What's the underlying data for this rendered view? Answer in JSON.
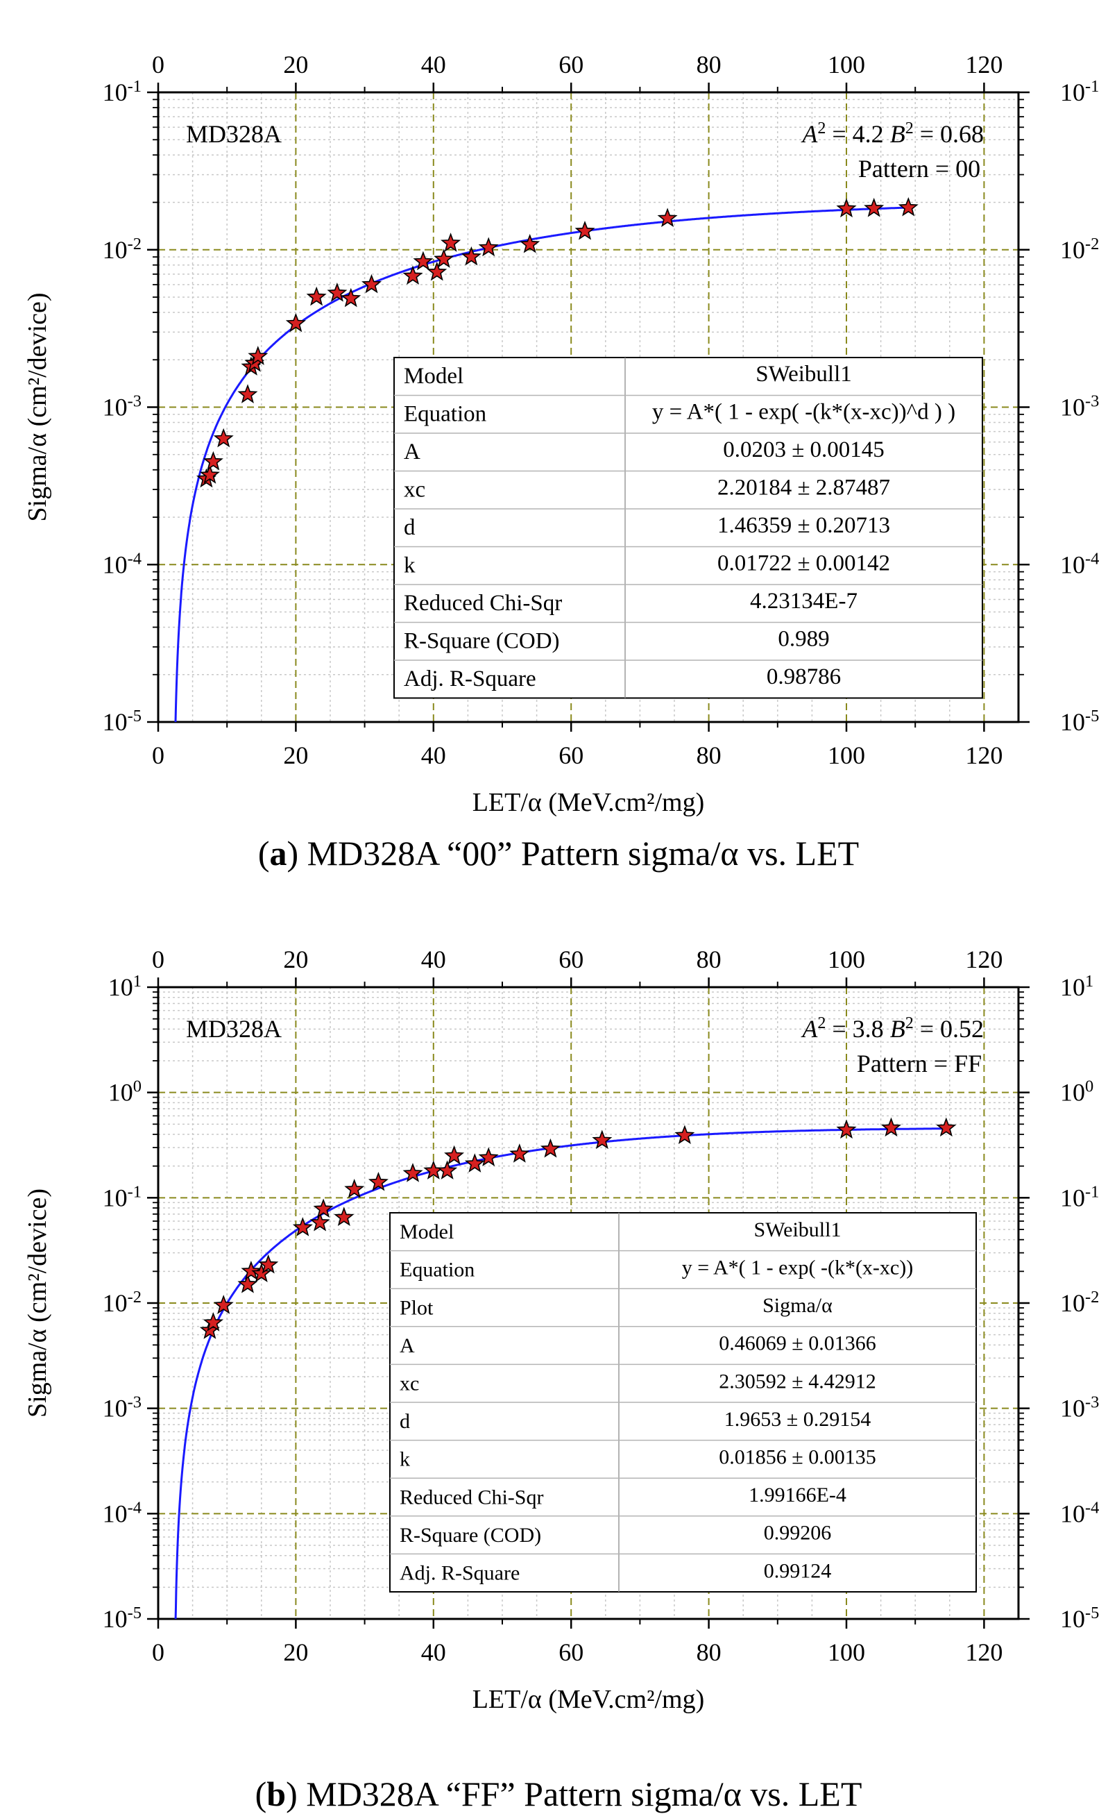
{
  "chart_data": [
    {
      "type": "scatter",
      "panel_label": "a",
      "caption": "MD328A “00” Pattern sigma/α vs. LET",
      "device_label": "MD328A",
      "annotation_A2": "4.2",
      "annotation_B2": "0.68",
      "pattern_text": "Pattern = 00",
      "xlabel": "LET/α (MeV.cm²/mg)",
      "ylabel": "Sigma/α (cm²/device)",
      "xlim": [
        0,
        125
      ],
      "ylim_exp": [
        -5,
        -1
      ],
      "y_scale": "log",
      "x_ticks": [
        "0",
        "20",
        "40",
        "60",
        "80",
        "100",
        "120"
      ],
      "x_tick_values": [
        0,
        20,
        40,
        60,
        80,
        100,
        120
      ],
      "top_x_tick_values": [
        0,
        20,
        40,
        60,
        80,
        100,
        120
      ],
      "top_x_ticks": [
        "0",
        "20",
        "40",
        "60",
        "80",
        "100",
        "120"
      ],
      "y_tick_exps": [
        "-5",
        "-4",
        "-3",
        "-2",
        "-1"
      ],
      "grid": true,
      "series": [
        {
          "name": "",
          "marker": "star",
          "color": "#d62020",
          "x": [
            7,
            7.5,
            8,
            9.5,
            13,
            13.5,
            14,
            14.5,
            20,
            23,
            26,
            28,
            31,
            37,
            38.5,
            40.5,
            41.5,
            42.5,
            45.5,
            48,
            54,
            62,
            74,
            100,
            104,
            109
          ],
          "y": [
            0.00035,
            0.00037,
            0.00045,
            0.00063,
            0.0012,
            0.0018,
            0.0019,
            0.0021,
            0.0034,
            0.005,
            0.0053,
            0.0049,
            0.006,
            0.0068,
            0.0084,
            0.0072,
            0.0087,
            0.011,
            0.009,
            0.0103,
            0.0108,
            0.0131,
            0.0158,
            0.0182,
            0.0183,
            0.0185
          ]
        }
      ],
      "fit": {
        "color": "#1a1aff",
        "model": "SWeibull1",
        "A": 0.0203,
        "xc": 2.20184,
        "d": 1.46359,
        "k": 0.01722
      },
      "table_mono": false,
      "table": [
        [
          "Model",
          "SWeibull1"
        ],
        [
          "Equation",
          "y = A*( 1 - exp( -(k*(x-xc))^d ) )"
        ],
        [
          "A",
          "0.0203 ± 0.00145"
        ],
        [
          "xc",
          "2.20184 ± 2.87487"
        ],
        [
          "d",
          "1.46359 ± 0.20713"
        ],
        [
          "k",
          "0.01722 ± 0.00142"
        ],
        [
          "Reduced Chi-Sqr",
          "4.23134E-7"
        ],
        [
          "R-Square (COD)",
          "0.989"
        ],
        [
          "Adj. R-Square",
          "0.98786"
        ]
      ]
    },
    {
      "type": "scatter",
      "panel_label": "b",
      "caption": "MD328A “FF” Pattern sigma/α vs. LET",
      "device_label": "MD328A",
      "annotation_A2": "3.8",
      "annotation_B2": "0.52",
      "pattern_text": "Pattern = FF",
      "xlabel": "LET/α (MeV.cm²/mg)",
      "ylabel": "Sigma/α (cm²/device)",
      "xlim": [
        0,
        125
      ],
      "ylim_exp": [
        -5,
        1
      ],
      "y_scale": "log",
      "x_ticks": [
        "0",
        "20",
        "40",
        "60",
        "80",
        "100",
        "120"
      ],
      "x_tick_values": [
        0,
        20,
        40,
        60,
        80,
        100,
        120
      ],
      "top_x_tick_values": [
        0,
        20,
        40,
        60,
        80,
        100,
        120
      ],
      "top_x_ticks": [
        "0",
        "20",
        "40",
        "60",
        "80",
        "100",
        "120"
      ],
      "y_tick_exps": [
        "-5",
        "-4",
        "-3",
        "-2",
        "-1",
        "0",
        "1"
      ],
      "grid": true,
      "series": [
        {
          "name": "",
          "marker": "star",
          "color": "#d62020",
          "x": [
            7.5,
            8,
            9.5,
            13,
            13.5,
            15,
            16,
            21,
            23.5,
            24,
            27,
            28.5,
            32,
            37,
            40,
            42,
            43,
            46,
            48,
            52.5,
            57,
            64.5,
            76.5,
            100,
            106.5,
            114.5
          ],
          "y": [
            0.0055,
            0.0065,
            0.0095,
            0.015,
            0.02,
            0.019,
            0.023,
            0.052,
            0.058,
            0.078,
            0.065,
            0.12,
            0.14,
            0.17,
            0.18,
            0.18,
            0.25,
            0.21,
            0.24,
            0.26,
            0.29,
            0.35,
            0.39,
            0.44,
            0.46,
            0.46
          ]
        }
      ],
      "fit": {
        "color": "#1a1aff",
        "model": "SWeibull1",
        "A": 0.46069,
        "xc": 2.30592,
        "d": 1.9653,
        "k": 0.01856
      },
      "table_mono": true,
      "table": [
        [
          "Model",
          "SWeibull1"
        ],
        [
          "Equation",
          "y = A*( 1 - exp( -(k*(x-xc))"
        ],
        [
          "Plot",
          "Sigma/α"
        ],
        [
          "A",
          "0.46069 ± 0.01366"
        ],
        [
          "xc",
          "2.30592 ± 4.42912"
        ],
        [
          "d",
          "1.9653 ± 0.29154"
        ],
        [
          "k",
          "0.01856 ± 0.00135"
        ],
        [
          "Reduced Chi-Sqr",
          "1.99166E-4"
        ],
        [
          "R-Square (COD)",
          "0.99206"
        ],
        [
          "Adj. R-Square",
          "0.99124"
        ]
      ]
    }
  ]
}
